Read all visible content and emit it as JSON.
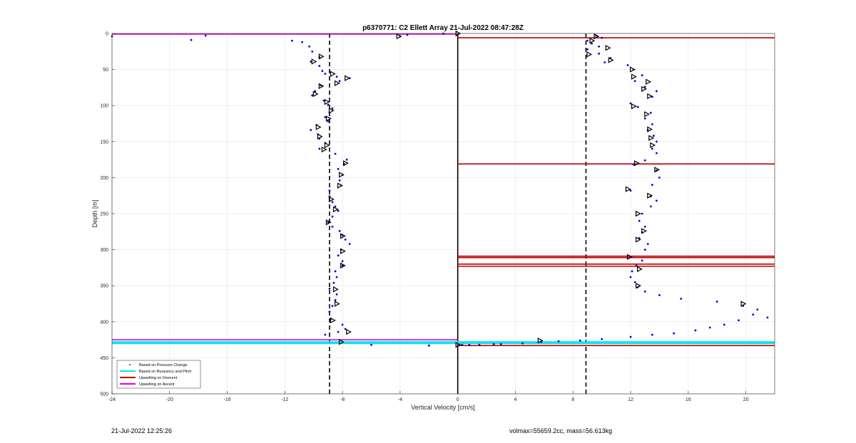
{
  "chart_data": {
    "type": "scatter",
    "title": "p6370771: C2 Ellett Array 21-Jul-2022 08:47:28Z",
    "xlabel": "Vertical Velocity [cm/s]",
    "ylabel": "Depth [m]",
    "xlim": [
      -24,
      22
    ],
    "ylim": [
      0,
      500
    ],
    "y_reversed": true,
    "grid": true,
    "x_ticks": [
      -24,
      -20,
      -16,
      -12,
      -8,
      -4,
      0,
      4,
      8,
      12,
      16,
      20
    ],
    "y_ticks": [
      0,
      50,
      100,
      150,
      200,
      250,
      300,
      350,
      400,
      450,
      500
    ],
    "legend": {
      "location": "bottom-left",
      "entries": [
        {
          "label": "Based on Pressure Change",
          "color": "#000000",
          "marker": "dot"
        },
        {
          "label": "Based on Buoyancy and Pitch",
          "color": "#00e5ee",
          "marker": "line"
        },
        {
          "label": "Upwelling on Descent",
          "color": "#c00000",
          "marker": "line"
        },
        {
          "label": "Upwelling on Ascent",
          "color": "#e000e0",
          "marker": "line"
        }
      ]
    },
    "reference_lines": {
      "vertical_solid": [
        0
      ],
      "vertical_dashed": [
        -8.9,
        8.9
      ]
    },
    "upwelling_descent_depths": [
      6,
      181,
      309,
      311,
      320,
      323,
      433
    ],
    "upwelling_ascent_depths": [
      1,
      425
    ],
    "buoyancy_pitch_depths": [
      428,
      430
    ],
    "series": [
      {
        "name": "Based on Pressure Change",
        "color": "#0000ff",
        "points": [
          [
            -24,
            4
          ],
          [
            -18.5,
            9
          ],
          [
            -17.5,
            3
          ],
          [
            -11.5,
            10
          ],
          [
            -10.8,
            12
          ],
          [
            -10.3,
            18
          ],
          [
            -10.1,
            25
          ],
          [
            -9.6,
            33
          ],
          [
            -10.2,
            39
          ],
          [
            -9.6,
            45
          ],
          [
            -9.4,
            52
          ],
          [
            -9.2,
            56
          ],
          [
            -8.4,
            60
          ],
          [
            -7.5,
            62
          ],
          [
            -8.2,
            66
          ],
          [
            -9.5,
            72
          ],
          [
            -9.9,
            80
          ],
          [
            -10.1,
            86
          ],
          [
            -9.3,
            93
          ],
          [
            -9.0,
            99
          ],
          [
            -8.7,
            104
          ],
          [
            -8.9,
            110
          ],
          [
            -9.2,
            116
          ],
          [
            -9.0,
            122
          ],
          [
            -9.8,
            127
          ],
          [
            -10.2,
            134
          ],
          [
            -9.7,
            140
          ],
          [
            -9.6,
            146
          ],
          [
            -9.2,
            152
          ],
          [
            -9.6,
            160
          ],
          [
            -8.5,
            167
          ],
          [
            -7.7,
            175
          ],
          [
            -7.9,
            181
          ],
          [
            -8.3,
            188
          ],
          [
            -8.0,
            196
          ],
          [
            -8.2,
            204
          ],
          [
            -8.1,
            211
          ],
          [
            -8.9,
            218
          ],
          [
            -8.9,
            226
          ],
          [
            -8.7,
            234
          ],
          [
            -8.5,
            240
          ],
          [
            -8.3,
            246
          ],
          [
            -8.7,
            254
          ],
          [
            -9.0,
            262
          ],
          [
            -8.7,
            268
          ],
          [
            -8.2,
            274
          ],
          [
            -8.0,
            280
          ],
          [
            -7.8,
            286
          ],
          [
            -7.5,
            292
          ],
          [
            -8.1,
            300
          ],
          [
            -8.3,
            308
          ],
          [
            -8.0,
            316
          ],
          [
            -8.0,
            322
          ],
          [
            -8.5,
            330
          ],
          [
            -8.4,
            338
          ],
          [
            -8.6,
            346
          ],
          [
            -8.9,
            354
          ],
          [
            -8.4,
            362
          ],
          [
            -8.5,
            370
          ],
          [
            -8.7,
            378
          ],
          [
            -8.9,
            386
          ],
          [
            -8.8,
            396
          ],
          [
            -8.0,
            404
          ],
          [
            -7.8,
            410
          ],
          [
            -8.3,
            414
          ],
          [
            -9.2,
            418
          ],
          [
            -6.0,
            432
          ],
          [
            -2.0,
            433
          ],
          [
            -3.5,
            2
          ],
          [
            -4.0,
            4
          ],
          [
            -1.0,
            0
          ],
          [
            0.3,
            432
          ],
          [
            0.8,
            432
          ],
          [
            1.5,
            432
          ],
          [
            2.5,
            431
          ],
          [
            3.0,
            431
          ],
          [
            4.5,
            430
          ],
          [
            5.8,
            428
          ],
          [
            7.0,
            427
          ],
          [
            8.5,
            426
          ],
          [
            10.0,
            424
          ],
          [
            12.0,
            421
          ],
          [
            13.5,
            418
          ],
          [
            15.0,
            416
          ],
          [
            16.5,
            412
          ],
          [
            17.5,
            408
          ],
          [
            18.5,
            404
          ],
          [
            19.5,
            398
          ],
          [
            20.5,
            390
          ],
          [
            21.5,
            394
          ],
          [
            20.8,
            383
          ],
          [
            19.8,
            378
          ],
          [
            18.0,
            372
          ],
          [
            15.5,
            368
          ],
          [
            14.0,
            363
          ],
          [
            13.0,
            358
          ],
          [
            12.5,
            352
          ],
          [
            12.3,
            345
          ],
          [
            12.0,
            338
          ],
          [
            12.1,
            330
          ],
          [
            12.4,
            322
          ],
          [
            12.8,
            315
          ],
          [
            12.0,
            310
          ],
          [
            13.0,
            300
          ],
          [
            13.2,
            292
          ],
          [
            12.6,
            284
          ],
          [
            12.8,
            276
          ],
          [
            13.0,
            268
          ],
          [
            12.6,
            260
          ],
          [
            12.8,
            250
          ],
          [
            13.4,
            240
          ],
          [
            13.8,
            232
          ],
          [
            13.4,
            226
          ],
          [
            12.0,
            218
          ],
          [
            13.5,
            210
          ],
          [
            14.0,
            200
          ],
          [
            13.8,
            190
          ],
          [
            12.2,
            182
          ],
          [
            13.0,
            176
          ],
          [
            13.8,
            166
          ],
          [
            13.5,
            160
          ],
          [
            13.8,
            150
          ],
          [
            13.6,
            142
          ],
          [
            13.2,
            134
          ],
          [
            13.5,
            126
          ],
          [
            13.0,
            118
          ],
          [
            13.4,
            110
          ],
          [
            12.5,
            102
          ],
          [
            12.0,
            97
          ],
          [
            13.5,
            88
          ],
          [
            13.8,
            80
          ],
          [
            13.0,
            74
          ],
          [
            12.3,
            66
          ],
          [
            12.8,
            58
          ],
          [
            12.2,
            50
          ],
          [
            11.8,
            44
          ],
          [
            10.2,
            40
          ],
          [
            10.6,
            34
          ],
          [
            9.8,
            28
          ],
          [
            9.0,
            22
          ],
          [
            9.8,
            18
          ],
          [
            9.3,
            14
          ],
          [
            9.0,
            10
          ],
          [
            10.0,
            6
          ],
          [
            9.6,
            3
          ]
        ]
      },
      {
        "name": "Based on Buoyancy and Pitch",
        "color": "#000000",
        "marker": "triangle",
        "points": [
          [
            -4.1,
            4
          ],
          [
            0,
            0
          ],
          [
            -9.5,
            32
          ],
          [
            -10.0,
            39
          ],
          [
            -8.7,
            56
          ],
          [
            -7.7,
            62
          ],
          [
            -8.4,
            69
          ],
          [
            -9.5,
            73
          ],
          [
            -9.9,
            84
          ],
          [
            -9.1,
            95
          ],
          [
            -8.8,
            107
          ],
          [
            -9.0,
            118
          ],
          [
            -9.7,
            130
          ],
          [
            -9.6,
            143
          ],
          [
            -9.1,
            155
          ],
          [
            -9.3,
            161
          ],
          [
            -7.8,
            180
          ],
          [
            -8.1,
            196
          ],
          [
            -8.2,
            211
          ],
          [
            -8.8,
            230
          ],
          [
            -8.5,
            244
          ],
          [
            -9.0,
            262
          ],
          [
            -8.0,
            281
          ],
          [
            -8.0,
            302
          ],
          [
            -8.0,
            322
          ],
          [
            -8.5,
            355
          ],
          [
            -8.4,
            375
          ],
          [
            -8.7,
            398
          ],
          [
            -7.6,
            414
          ],
          [
            -8.1,
            428
          ],
          [
            0,
            432
          ],
          [
            5.7,
            426
          ],
          [
            9.6,
            4
          ],
          [
            9.3,
            10
          ],
          [
            10.4,
            20
          ],
          [
            9.1,
            29
          ],
          [
            10.6,
            37
          ],
          [
            12.1,
            50
          ],
          [
            12.2,
            60
          ],
          [
            13.2,
            67
          ],
          [
            12.9,
            77
          ],
          [
            13.3,
            87
          ],
          [
            12.2,
            101
          ],
          [
            13.1,
            112
          ],
          [
            13.3,
            133
          ],
          [
            13.4,
            145
          ],
          [
            13.5,
            155
          ],
          [
            12.4,
            180
          ],
          [
            13.8,
            189
          ],
          [
            11.8,
            216
          ],
          [
            13.3,
            225
          ],
          [
            12.5,
            250
          ],
          [
            12.9,
            274
          ],
          [
            12.5,
            286
          ],
          [
            11.9,
            310
          ],
          [
            12.6,
            327
          ],
          [
            12.5,
            350
          ],
          [
            19.8,
            375
          ]
        ]
      }
    ]
  },
  "footer": {
    "timestamp": "21-Jul-2022 12:25:26",
    "info": "volmax=55659.2cc, mass=56.613kg"
  }
}
